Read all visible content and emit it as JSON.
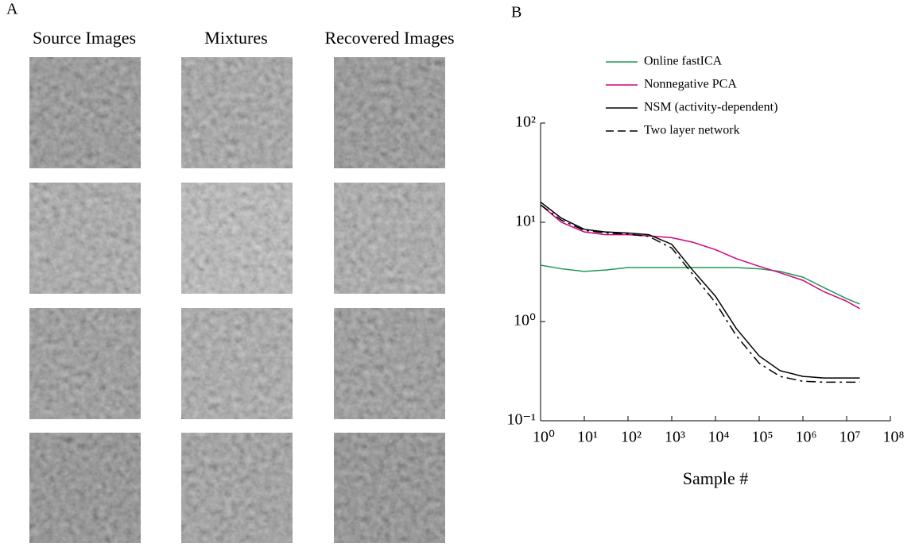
{
  "panel_a": {
    "label": "A",
    "columns": [
      "Source Images",
      "Mixtures",
      "Recovered Images"
    ]
  },
  "chart_data": {
    "type": "line",
    "panel_label": "B",
    "xlabel": "Sample #",
    "xscale": "log",
    "yscale": "log",
    "legend": "upper right",
    "x": [
      1,
      3,
      10,
      30,
      100,
      300,
      1000,
      3000,
      10000,
      30000,
      100000,
      300000,
      1000000,
      3000000,
      10000000,
      20000000
    ],
    "series": [
      {
        "name": "Online fastICA",
        "color": "#1f9a50",
        "linestyle": "solid",
        "values": [
          3.7,
          3.4,
          3.2,
          3.3,
          3.5,
          3.5,
          3.5,
          3.5,
          3.5,
          3.5,
          3.4,
          3.2,
          2.8,
          2.2,
          1.7,
          1.5
        ]
      },
      {
        "name": "Nonnegative PCA",
        "color": "#d4007f",
        "linestyle": "solid",
        "values": [
          15,
          10,
          8,
          7.5,
          7.5,
          7.3,
          7,
          6.3,
          5.3,
          4.3,
          3.6,
          3.1,
          2.6,
          2,
          1.6,
          1.35
        ]
      },
      {
        "name": "NSM (activity-dependent)",
        "color": "#000000",
        "linestyle": "solid",
        "values": [
          16,
          11,
          8.5,
          8,
          7.8,
          7.5,
          6,
          3.3,
          1.8,
          0.85,
          0.45,
          0.32,
          0.28,
          0.27,
          0.27,
          0.27
        ]
      },
      {
        "name": "Two layer network",
        "color": "#000000",
        "linestyle": "dashed",
        "values": [
          15,
          10.5,
          8.3,
          7.8,
          7.6,
          7.2,
          5.5,
          3,
          1.55,
          0.72,
          0.38,
          0.28,
          0.25,
          0.245,
          0.245,
          0.245
        ]
      }
    ],
    "xlim": [
      1,
      100000000
    ],
    "xticks": [
      {
        "value": 1,
        "label": "10⁰"
      },
      {
        "value": 10,
        "label": "10¹"
      },
      {
        "value": 100,
        "label": "10²"
      },
      {
        "value": 1000,
        "label": "10³"
      },
      {
        "value": 10000,
        "label": "10⁴"
      },
      {
        "value": 100000,
        "label": "10⁵"
      },
      {
        "value": 1000000,
        "label": "10⁶"
      },
      {
        "value": 10000000,
        "label": "10⁷"
      },
      {
        "value": 100000000,
        "label": "10⁸"
      }
    ],
    "ylim": [
      0.1,
      100
    ],
    "yticks": [
      {
        "value": 0.1,
        "label": "10⁻¹"
      },
      {
        "value": 1,
        "label": "10⁰"
      },
      {
        "value": 10,
        "label": "10¹"
      },
      {
        "value": 100,
        "label": "10²"
      }
    ]
  }
}
